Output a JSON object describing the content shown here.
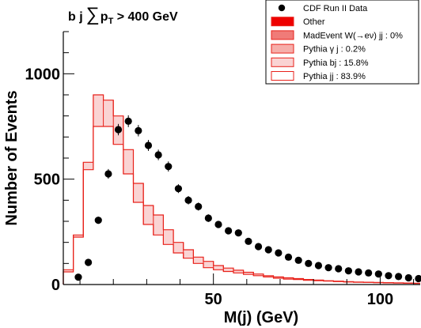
{
  "chart_data": {
    "type": "histogram",
    "title_prefix": "b j",
    "title_sum": "∑",
    "title_p": "p",
    "title_sub": "T",
    "title_suffix": " > 400 GeV",
    "xlabel": "M(j) (GeV)",
    "ylabel": "Number of Events",
    "xlim": [
      5,
      112
    ],
    "ylim": [
      0,
      1200
    ],
    "x_ticks": [
      50,
      100
    ],
    "y_ticks": [
      0,
      500,
      1000
    ],
    "bin_edges": [
      5,
      8,
      11,
      14,
      17,
      20,
      23,
      26,
      29,
      32,
      35,
      38,
      41,
      44,
      47,
      50,
      53,
      56,
      59,
      62,
      65,
      68,
      71,
      74,
      77,
      80,
      83,
      86,
      89,
      92,
      95,
      98,
      101,
      104,
      107,
      110,
      113
    ],
    "series": [
      {
        "name": "Pythia jj : 83.9%",
        "style": "hollow",
        "values": [
          60,
          225,
          545,
          750,
          750,
          665,
          525,
          390,
          285,
          235,
          190,
          150,
          125,
          100,
          80,
          70,
          62,
          55,
          48,
          42,
          36,
          30,
          26,
          24,
          20,
          18,
          16,
          14,
          12,
          11,
          10,
          9,
          8,
          7,
          6,
          5
        ]
      },
      {
        "name": "Pythia bj : 15.8%",
        "style": "filled",
        "values": [
          70,
          235,
          580,
          900,
          875,
          800,
          640,
          480,
          375,
          330,
          260,
          200,
          165,
          130,
          110,
          90,
          78,
          68,
          58,
          50,
          42,
          36,
          32,
          28,
          24,
          21,
          18,
          16,
          14,
          12,
          11,
          10,
          9,
          8,
          7,
          6
        ]
      },
      {
        "name": "Pythia γ j : 0.2%",
        "style": "filled",
        "values": []
      },
      {
        "name": "MadEvent W(→eν) jj : 0%",
        "style": "filled",
        "values": []
      },
      {
        "name": "Other",
        "style": "filled",
        "values": []
      }
    ],
    "data_series": {
      "name": "CDF Run II Data",
      "x": [
        9.5,
        12.5,
        15.5,
        18.5,
        21.5,
        24.5,
        27.5,
        30.5,
        33.5,
        36.5,
        39.5,
        42.5,
        45.5,
        48.5,
        51.5,
        54.5,
        57.5,
        60.5,
        63.5,
        66.5,
        69.5,
        72.5,
        75.5,
        78.5,
        81.5,
        84.5,
        87.5,
        90.5,
        93.5,
        96.5,
        99.5,
        102.5,
        105.5,
        108.5,
        111.5
      ],
      "y": [
        35,
        105,
        305,
        525,
        735,
        775,
        730,
        660,
        615,
        560,
        455,
        400,
        370,
        315,
        285,
        255,
        245,
        205,
        180,
        165,
        150,
        130,
        115,
        100,
        90,
        80,
        75,
        65,
        60,
        55,
        50,
        42,
        38,
        32,
        28
      ],
      "err": [
        6,
        10,
        17,
        23,
        27,
        28,
        27,
        26,
        25,
        24,
        21,
        20,
        19,
        18,
        17,
        16,
        16,
        14,
        13,
        13,
        12,
        11,
        11,
        10,
        9,
        9,
        9,
        8,
        8,
        7,
        7,
        6,
        6,
        6,
        5
      ]
    },
    "legend_placement": "top-right",
    "colors": {
      "line": "#e8221b",
      "other": "#ee0000",
      "madevent": "#f07b78",
      "pythia_gj": "#f6aeaa",
      "pythia_bj": "#fad3d3",
      "pythia_jj": "#ffffff",
      "data": "#000000"
    }
  }
}
